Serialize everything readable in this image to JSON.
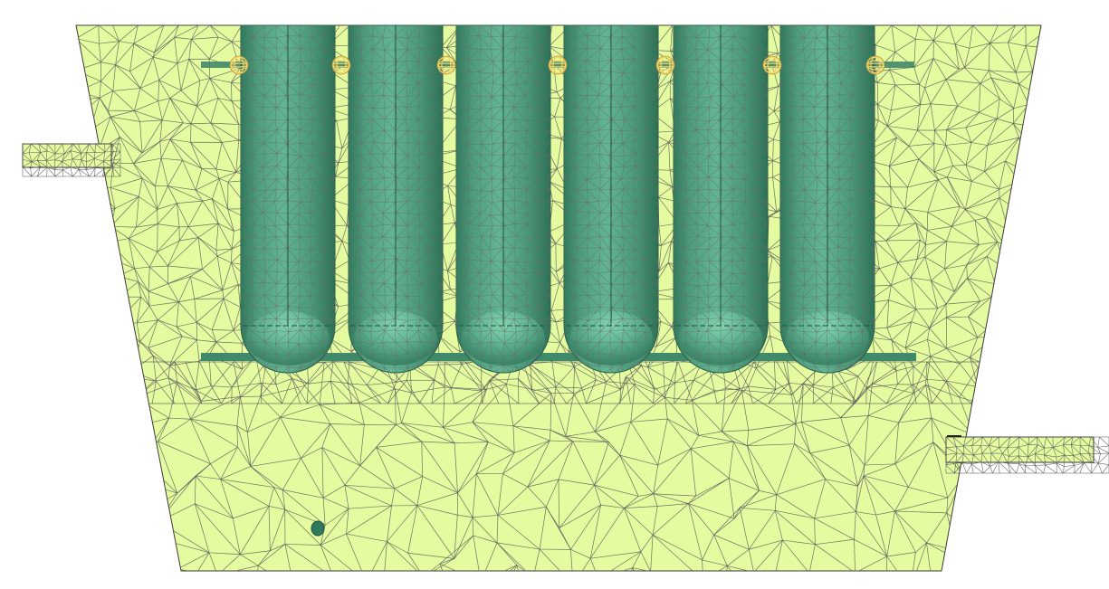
{
  "scene": {
    "description_type": "fem-mesh-view",
    "colors": {
      "background": "#ffffff",
      "fluid_domain": "#e4fb9f",
      "mesh_line": "#5a5a5a",
      "tank_body": "#4a9a7a",
      "tank_dark": "#2f7a5c",
      "tank_highlight": "#7fd3ad",
      "pipe": "#3f8a6a",
      "clamp_ring": "#f3d56a",
      "outline": "#3a3a3a"
    },
    "tanks": [
      {
        "id": "tank-1"
      },
      {
        "id": "tank-2"
      },
      {
        "id": "tank-3"
      },
      {
        "id": "tank-4"
      },
      {
        "id": "tank-5"
      },
      {
        "id": "tank-6"
      }
    ],
    "clamps": [
      {
        "id": "clamp-1"
      },
      {
        "id": "clamp-2"
      },
      {
        "id": "clamp-3"
      },
      {
        "id": "clamp-4"
      },
      {
        "id": "clamp-5"
      },
      {
        "id": "clamp-6"
      },
      {
        "id": "clamp-7"
      }
    ]
  }
}
